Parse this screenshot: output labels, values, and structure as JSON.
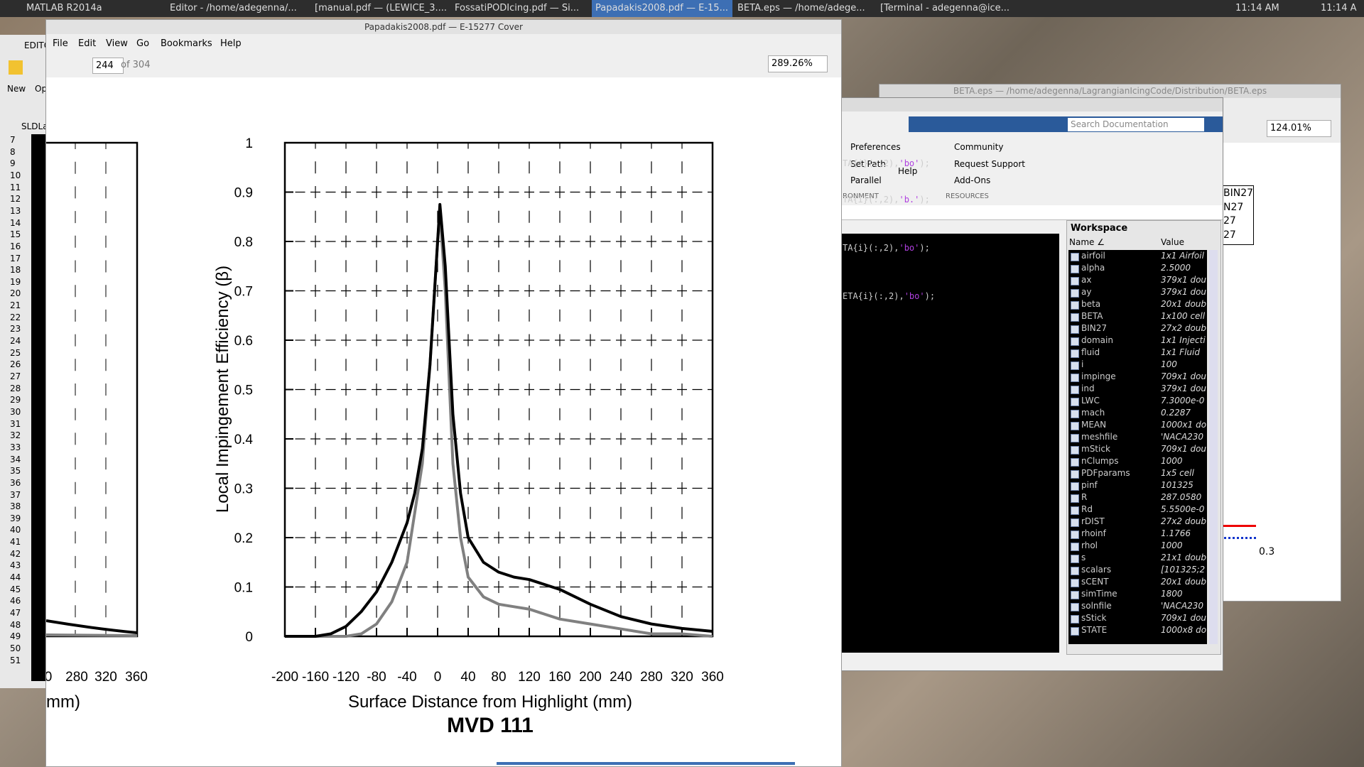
{
  "taskbar": {
    "tasks": [
      "MATLAB R2014a",
      "Editor - /home/adegenna/...",
      "[manual.pdf — (LEWICE_3....",
      "FossatiPODIcing.pdf — Si...",
      "Papadakis2008.pdf — E-15...",
      "BETA.eps — /home/adege...",
      "[Terminal - adegenna@ice..."
    ],
    "clock": "11:14 AM",
    "clock_cut": "11:14 A"
  },
  "matlab_editor": {
    "tab": "EDITO",
    "buttons": [
      "New",
      "Op"
    ],
    "file_tab": "SLDLa",
    "line_numbers": [
      7,
      8,
      9,
      10,
      11,
      12,
      13,
      14,
      15,
      16,
      17,
      18,
      19,
      20,
      21,
      22,
      23,
      24,
      25,
      26,
      27,
      28,
      29,
      30,
      31,
      32,
      33,
      34,
      35,
      36,
      37,
      38,
      39,
      40,
      41,
      42,
      43,
      44,
      45,
      46,
      47,
      48,
      49,
      50,
      51
    ]
  },
  "pdf_viewer": {
    "title": "Papadakis2008.pdf — E-15277 Cover",
    "menu": [
      "File",
      "Edit",
      "View",
      "Go",
      "Bookmarks",
      "Help"
    ],
    "page": "244",
    "page_count": "of 304",
    "zoom": "289.26%",
    "left_fragment": {
      "tick_labels": [
        "0",
        "280",
        "320",
        "360"
      ],
      "xlabel": "mm)"
    }
  },
  "chart_data": {
    "type": "line",
    "title": "MVD 111",
    "xlabel": "Surface Distance from Highlight (mm)",
    "ylabel": "Local Impingement Efficiency (β)",
    "xlim": [
      -200,
      360
    ],
    "ylim": [
      0,
      1
    ],
    "xticks": [
      -200,
      -160,
      -120,
      -80,
      -40,
      0,
      40,
      80,
      120,
      160,
      200,
      240,
      280,
      320,
      360
    ],
    "yticks": [
      0,
      0.1,
      0.2,
      0.3,
      0.4,
      0.5,
      0.6,
      0.7,
      0.8,
      0.9,
      1
    ],
    "grid": true,
    "series": [
      {
        "color": "#000000",
        "x": [
          -200,
          -160,
          -140,
          -120,
          -100,
          -80,
          -60,
          -40,
          -30,
          -20,
          -10,
          0,
          3,
          10,
          20,
          30,
          40,
          60,
          80,
          100,
          120,
          140,
          160,
          200,
          240,
          280,
          320,
          360
        ],
        "values": [
          0,
          0,
          0.005,
          0.02,
          0.05,
          0.09,
          0.15,
          0.23,
          0.29,
          0.38,
          0.55,
          0.8,
          0.875,
          0.75,
          0.45,
          0.29,
          0.2,
          0.15,
          0.13,
          0.12,
          0.115,
          0.105,
          0.095,
          0.065,
          0.04,
          0.025,
          0.016,
          0.01
        ]
      },
      {
        "color": "#808080",
        "x": [
          -200,
          -120,
          -100,
          -80,
          -60,
          -40,
          -20,
          -10,
          0,
          3,
          10,
          20,
          30,
          40,
          60,
          80,
          100,
          120,
          140,
          160,
          200,
          240,
          280,
          320,
          360
        ],
        "values": [
          0,
          0,
          0.005,
          0.025,
          0.07,
          0.15,
          0.35,
          0.55,
          0.8,
          0.86,
          0.7,
          0.35,
          0.2,
          0.12,
          0.08,
          0.065,
          0.06,
          0.055,
          0.045,
          0.035,
          0.025,
          0.015,
          0.005,
          0.005,
          0
        ]
      }
    ]
  },
  "matlab": {
    "toolstrip": {
      "environment": [
        "Preferences",
        "Set Path",
        "Parallel"
      ],
      "help": "Help",
      "resources": [
        "Community",
        "Request Support",
        "Add-Ons"
      ],
      "sections": [
        "RONMENT",
        "RESOURCES"
      ]
    },
    "search": "Search Documentation",
    "command_lines": [
      [
        "TA{i}(:,2),",
        "'bo'",
        ");"
      ],
      [
        "TA{i}(:,2),",
        "'b.'",
        ");"
      ],
      [
        "TA{i}(:,2),",
        "'bo'",
        ");"
      ],
      [
        "ETA{i}(:,2),",
        "'bo'",
        ");"
      ]
    ],
    "workspace": {
      "title": "Workspace",
      "columns": [
        "Name ∠",
        "Value"
      ],
      "rows": [
        [
          "airfoil",
          "1x1 Airfoil"
        ],
        [
          "alpha",
          "2.5000"
        ],
        [
          "ax",
          "379x1 dou"
        ],
        [
          "ay",
          "379x1 dou"
        ],
        [
          "beta",
          "20x1 doub"
        ],
        [
          "BETA",
          "1x100 cell"
        ],
        [
          "BIN27",
          "27x2 doub"
        ],
        [
          "domain",
          "1x1 Injecti"
        ],
        [
          "fluid",
          "1x1 Fluid"
        ],
        [
          "i",
          "100"
        ],
        [
          "impinge",
          "709x1 dou"
        ],
        [
          "ind",
          "379x1 dou"
        ],
        [
          "LWC",
          "7.3000e-0"
        ],
        [
          "mach",
          "0.2287"
        ],
        [
          "MEAN",
          "1000x1 do"
        ],
        [
          "meshfile",
          "'NACA230"
        ],
        [
          "mStick",
          "709x1 dou"
        ],
        [
          "nClumps",
          "1000"
        ],
        [
          "PDFparams",
          "1x5 cell"
        ],
        [
          "pinf",
          "101325"
        ],
        [
          "R",
          "287.0580"
        ],
        [
          "Rd",
          "5.5500e-0"
        ],
        [
          "rDIST",
          "27x2 doub"
        ],
        [
          "rhoinf",
          "1.1766"
        ],
        [
          "rhol",
          "1000"
        ],
        [
          "s",
          "21x1 doub"
        ],
        [
          "scalars",
          "[101325;2"
        ],
        [
          "sCENT",
          "20x1 doub"
        ],
        [
          "simTime",
          "1800"
        ],
        [
          "solnfile",
          "'NACA230"
        ],
        [
          "sStick",
          "709x1 dou"
        ],
        [
          "STATE",
          "1000x8 do"
        ]
      ]
    }
  },
  "beta_window": {
    "title": "BETA.eps — /home/adegenna/LagrangianIcingCode/Distribution/BETA.eps",
    "zoom": "124.01%",
    "legend": [
      "BIN27",
      "N27",
      "27",
      "27"
    ],
    "tick": "0.3"
  }
}
